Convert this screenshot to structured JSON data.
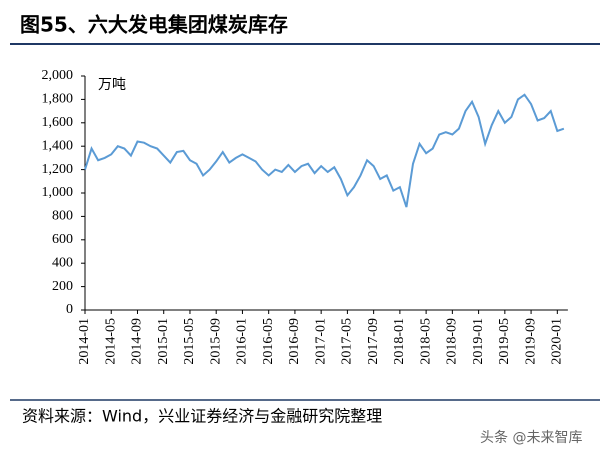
{
  "chart_data": {
    "type": "line",
    "title": "图55、六大发电集团煤炭库存",
    "y_label": "万吨",
    "source": "资料来源：Wind，兴业证券经济与金融研究院整理",
    "watermark": "头条 @未来智库",
    "x": [
      "2014-01",
      "2014-02",
      "2014-03",
      "2014-04",
      "2014-05",
      "2014-06",
      "2014-07",
      "2014-08",
      "2014-09",
      "2014-10",
      "2014-11",
      "2014-12",
      "2015-01",
      "2015-02",
      "2015-03",
      "2015-04",
      "2015-05",
      "2015-06",
      "2015-07",
      "2015-08",
      "2015-09",
      "2015-10",
      "2015-11",
      "2015-12",
      "2016-01",
      "2016-02",
      "2016-03",
      "2016-04",
      "2016-05",
      "2016-06",
      "2016-07",
      "2016-08",
      "2016-09",
      "2016-10",
      "2016-11",
      "2016-12",
      "2017-01",
      "2017-02",
      "2017-03",
      "2017-04",
      "2017-05",
      "2017-06",
      "2017-07",
      "2017-08",
      "2017-09",
      "2017-10",
      "2017-11",
      "2017-12",
      "2018-01",
      "2018-02",
      "2018-03",
      "2018-04",
      "2018-05",
      "2018-06",
      "2018-07",
      "2018-08",
      "2018-09",
      "2018-10",
      "2018-11",
      "2018-12",
      "2019-01",
      "2019-02",
      "2019-03",
      "2019-04",
      "2019-05",
      "2019-06",
      "2019-07",
      "2019-08",
      "2019-09",
      "2019-10",
      "2019-11",
      "2019-12",
      "2020-01",
      "2020-02"
    ],
    "series": [
      {
        "color": "#5b9bd5",
        "values": [
          1200,
          1380,
          1280,
          1300,
          1330,
          1400,
          1380,
          1320,
          1440,
          1430,
          1400,
          1380,
          1320,
          1260,
          1350,
          1360,
          1280,
          1250,
          1150,
          1200,
          1270,
          1350,
          1260,
          1300,
          1330,
          1300,
          1270,
          1200,
          1150,
          1200,
          1180,
          1240,
          1180,
          1230,
          1250,
          1170,
          1230,
          1180,
          1220,
          1120,
          980,
          1050,
          1150,
          1280,
          1230,
          1120,
          1150,
          1020,
          1050,
          880,
          1250,
          1420,
          1340,
          1380,
          1500,
          1520,
          1500,
          1550,
          1700,
          1780,
          1650,
          1420,
          1580,
          1700,
          1600,
          1650,
          1800,
          1840,
          1760,
          1620,
          1640,
          1700,
          1530,
          1550
        ]
      }
    ],
    "xticks": [
      "2014-01",
      "2014-05",
      "2014-09",
      "2015-01",
      "2015-05",
      "2015-09",
      "2016-01",
      "2016-05",
      "2016-09",
      "2017-01",
      "2017-05",
      "2017-09",
      "2018-01",
      "2018-05",
      "2018-09",
      "2019-01",
      "2019-05",
      "2019-09",
      "2020-01"
    ],
    "ylim": [
      0,
      2000
    ],
    "yticks": [
      0,
      200,
      400,
      600,
      800,
      {
        "value": 1000,
        "label": "1,000"
      },
      {
        "value": 1200,
        "label": "1,200"
      },
      {
        "value": 1400,
        "label": "1,400"
      },
      {
        "value": 1600,
        "label": "1,600"
      },
      {
        "value": 1800,
        "label": "1,800"
      },
      {
        "value": 2000,
        "label": "2,000"
      }
    ],
    "grid": false
  }
}
